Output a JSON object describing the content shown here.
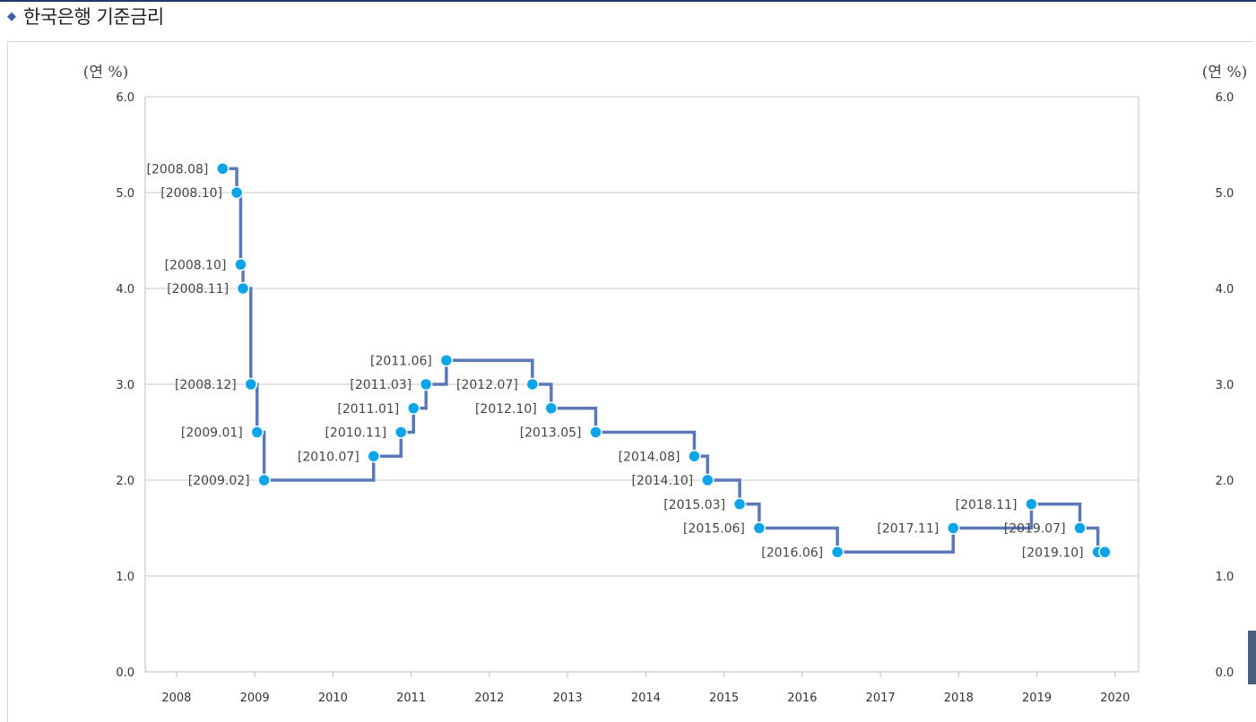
{
  "header": {
    "title": "한국은행 기준금리",
    "bullet_icon": "diamond-icon"
  },
  "chart_data": {
    "type": "line",
    "step": true,
    "title": "",
    "xlabel": "",
    "ylabel": "(연 %)",
    "ylabel_right": "(연 %)",
    "xlim": [
      2007.6,
      2020.3
    ],
    "ylim": [
      0,
      6
    ],
    "x_ticks": [
      "2008",
      "2009",
      "2010",
      "2011",
      "2012",
      "2013",
      "2014",
      "2015",
      "2016",
      "2017",
      "2018",
      "2019",
      "2020"
    ],
    "y_ticks": [
      "0.0",
      "1.0",
      "2.0",
      "3.0",
      "4.0",
      "5.0",
      "6.0"
    ],
    "grid": true,
    "line_color": "#5b78b8",
    "marker_color": "#0aa4e8",
    "series": [
      {
        "points": [
          {
            "label": "[2008.08]",
            "x": 2008.59,
            "y": 5.25
          },
          {
            "label": "[2008.10]",
            "x": 2008.77,
            "y": 5.0
          },
          {
            "label": "[2008.10]",
            "x": 2008.82,
            "y": 4.25
          },
          {
            "label": "[2008.11]",
            "x": 2008.85,
            "y": 4.0
          },
          {
            "label": "[2008.12]",
            "x": 2008.95,
            "y": 3.0
          },
          {
            "label": "[2009.01]",
            "x": 2009.03,
            "y": 2.5
          },
          {
            "label": "[2009.02]",
            "x": 2009.12,
            "y": 2.0
          },
          {
            "label": "[2010.07]",
            "x": 2010.52,
            "y": 2.25
          },
          {
            "label": "[2010.11]",
            "x": 2010.87,
            "y": 2.5
          },
          {
            "label": "[2011.01]",
            "x": 2011.03,
            "y": 2.75
          },
          {
            "label": "[2011.03]",
            "x": 2011.19,
            "y": 3.0
          },
          {
            "label": "[2011.06]",
            "x": 2011.45,
            "y": 3.25
          },
          {
            "label": "[2012.07]",
            "x": 2012.55,
            "y": 3.0
          },
          {
            "label": "[2012.10]",
            "x": 2012.79,
            "y": 2.75
          },
          {
            "label": "[2013.05]",
            "x": 2013.36,
            "y": 2.5
          },
          {
            "label": "[2014.08]",
            "x": 2014.62,
            "y": 2.25
          },
          {
            "label": "[2014.10]",
            "x": 2014.79,
            "y": 2.0
          },
          {
            "label": "[2015.03]",
            "x": 2015.2,
            "y": 1.75
          },
          {
            "label": "[2015.06]",
            "x": 2015.45,
            "y": 1.5
          },
          {
            "label": "[2016.06]",
            "x": 2016.45,
            "y": 1.25
          },
          {
            "label": "[2017.11]",
            "x": 2017.93,
            "y": 1.5
          },
          {
            "label": "[2018.11]",
            "x": 2018.93,
            "y": 1.75
          },
          {
            "label": "[2019.07]",
            "x": 2019.55,
            "y": 1.5
          },
          {
            "label": "[2019.10]",
            "x": 2019.78,
            "y": 1.25
          },
          {
            "label": "",
            "x": 2019.87,
            "y": 1.25
          }
        ]
      }
    ]
  }
}
